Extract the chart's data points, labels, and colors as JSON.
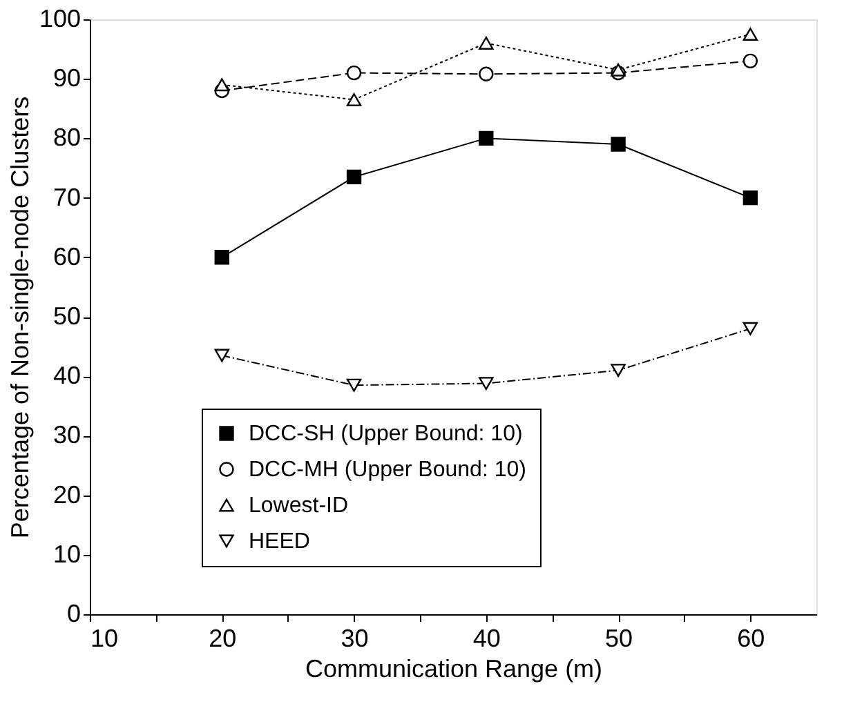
{
  "chart_data": {
    "type": "line",
    "xlabel": "Communication Range (m)",
    "ylabel": "Percentage of Non-single-node Clusters",
    "x": [
      20,
      30,
      40,
      50,
      60
    ],
    "xlim": [
      10,
      65
    ],
    "xticks": [
      10,
      {
        "value": 15,
        "label": null
      },
      20,
      {
        "value": 25,
        "label": null
      },
      30,
      {
        "value": 35,
        "label": null
      },
      40,
      {
        "value": 45,
        "label": null
      },
      50,
      {
        "value": 55,
        "label": null
      },
      60
    ],
    "ylim": [
      0,
      100
    ],
    "yticks": [
      0,
      10,
      20,
      30,
      40,
      50,
      60,
      70,
      80,
      90,
      100
    ],
    "grid": false,
    "legend": "bottom",
    "series": [
      {
        "name": "DCC-SH (Upper Bound: 10)",
        "color": "#000000",
        "values": [
          60,
          73.5,
          80,
          79,
          70
        ],
        "marker": "square",
        "line_style": "solid"
      },
      {
        "name": "DCC-MH (Upper Bound: 10)",
        "color": "#000000",
        "values": [
          88,
          91,
          90.8,
          91,
          93
        ],
        "marker": "circle",
        "line_style": "dashed"
      },
      {
        "name": "Lowest-ID",
        "color": "#000000",
        "values": [
          89,
          86.5,
          96,
          91.5,
          97.5
        ],
        "marker": "triangle",
        "line_style": "dotted"
      },
      {
        "name": "HEED",
        "color": "#000000",
        "values": [
          43.5,
          38.5,
          38.8,
          41,
          48
        ],
        "marker": "triangle-down",
        "line_style": "dashdot"
      }
    ]
  }
}
